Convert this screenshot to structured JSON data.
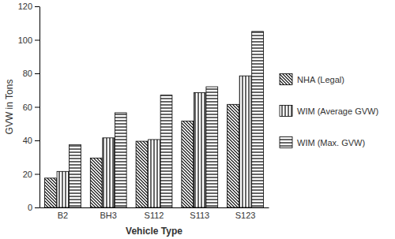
{
  "chart_data": {
    "type": "bar",
    "x_label": "Vehicle Type",
    "y_label": "GVW in Tons",
    "categories": [
      "B2",
      "BH3",
      "S112",
      "S113",
      "S123"
    ],
    "series": [
      {
        "name": "NHA (Legal)",
        "color": "#000000",
        "values": [
          17.5,
          29.5,
          39.5,
          51.5,
          61.5
        ]
      },
      {
        "name": "WIM (Average GVW)",
        "color": "#000000",
        "values": [
          21.5,
          41.5,
          40.5,
          68.5,
          78.5
        ]
      },
      {
        "name": "WIM (Max. GVW)",
        "color": "#000000",
        "values": [
          37.5,
          56.5,
          67,
          72,
          105
        ]
      }
    ],
    "ylim": [
      0,
      120
    ],
    "yticks": [
      0,
      20,
      40,
      60,
      80,
      100,
      120
    ],
    "grid": false,
    "legend": "right"
  }
}
